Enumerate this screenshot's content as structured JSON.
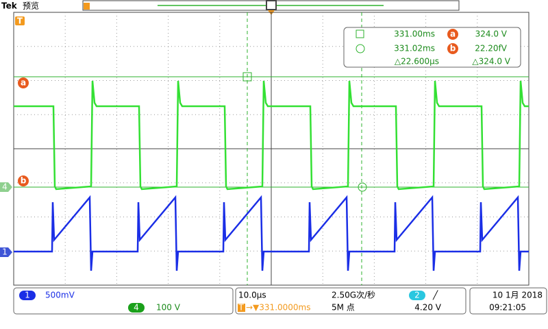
{
  "header": {
    "brand": "Tek",
    "mode": "预览"
  },
  "markers": {
    "trigger": "T",
    "cursor_a": "a",
    "cursor_b": "b",
    "ch4": "4",
    "ch1": "1"
  },
  "readout": {
    "t1": "331.00ms",
    "a_label": "a",
    "v1": "324.0 V",
    "t2": "331.02ms",
    "b_label": "b",
    "v2": "22.20fV",
    "dt": "△22.600μs",
    "dv": "△324.0 V"
  },
  "status": {
    "ch1": {
      "label": "1",
      "scale": "500mV"
    },
    "ch4": {
      "label": "4",
      "scale": "100 V"
    },
    "timebase": "10.0μs",
    "sample_rate": "2.50G次/秒",
    "trigger_icon": "T",
    "trigger_pos": "→▼331.0000ms",
    "record_length": "5M 点",
    "trigger_source": "2",
    "trigger_slope": "╱",
    "trigger_level": "4.20 V",
    "date": "10 1月 2018",
    "time": "09:21:05"
  }
}
